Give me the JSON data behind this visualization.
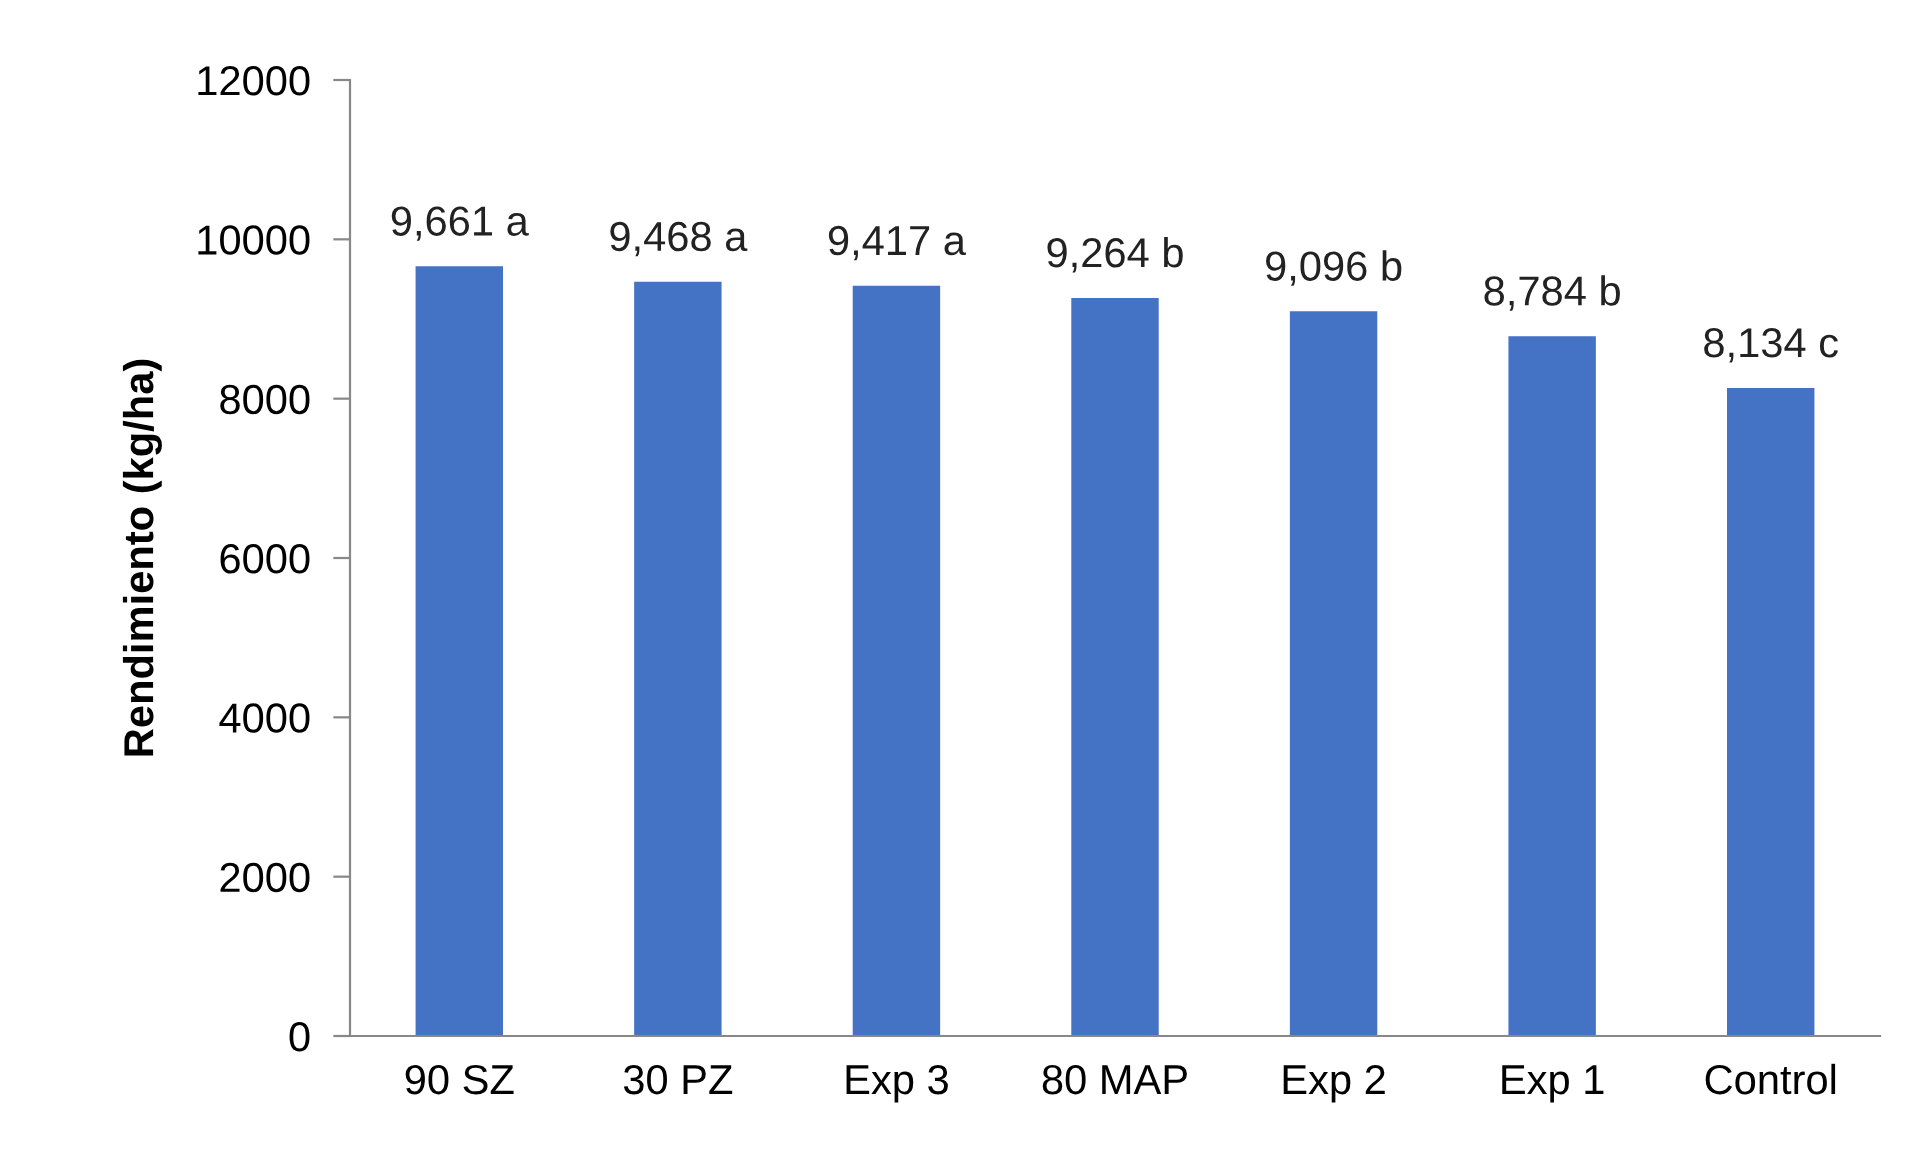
{
  "chart_data": {
    "type": "bar",
    "ylabel": "Rendimiento (kg/ha)",
    "categories": [
      "90 SZ",
      "30 PZ",
      "Exp 3",
      "80 MAP",
      "Exp 2",
      "Exp 1",
      "Control"
    ],
    "values": [
      9661,
      9468,
      9417,
      9264,
      9096,
      8784,
      8134
    ],
    "value_labels": [
      "9,661 a",
      "9,468 a",
      "9,417 a",
      "9,264 b",
      "9,096 b",
      "8,784 b",
      "8,134 c"
    ],
    "color": "#4472c4",
    "ylim": [
      0,
      12000
    ],
    "yticks": [
      0,
      2000,
      4000,
      6000,
      8000,
      10000,
      12000
    ],
    "grid": false,
    "legend": false
  }
}
